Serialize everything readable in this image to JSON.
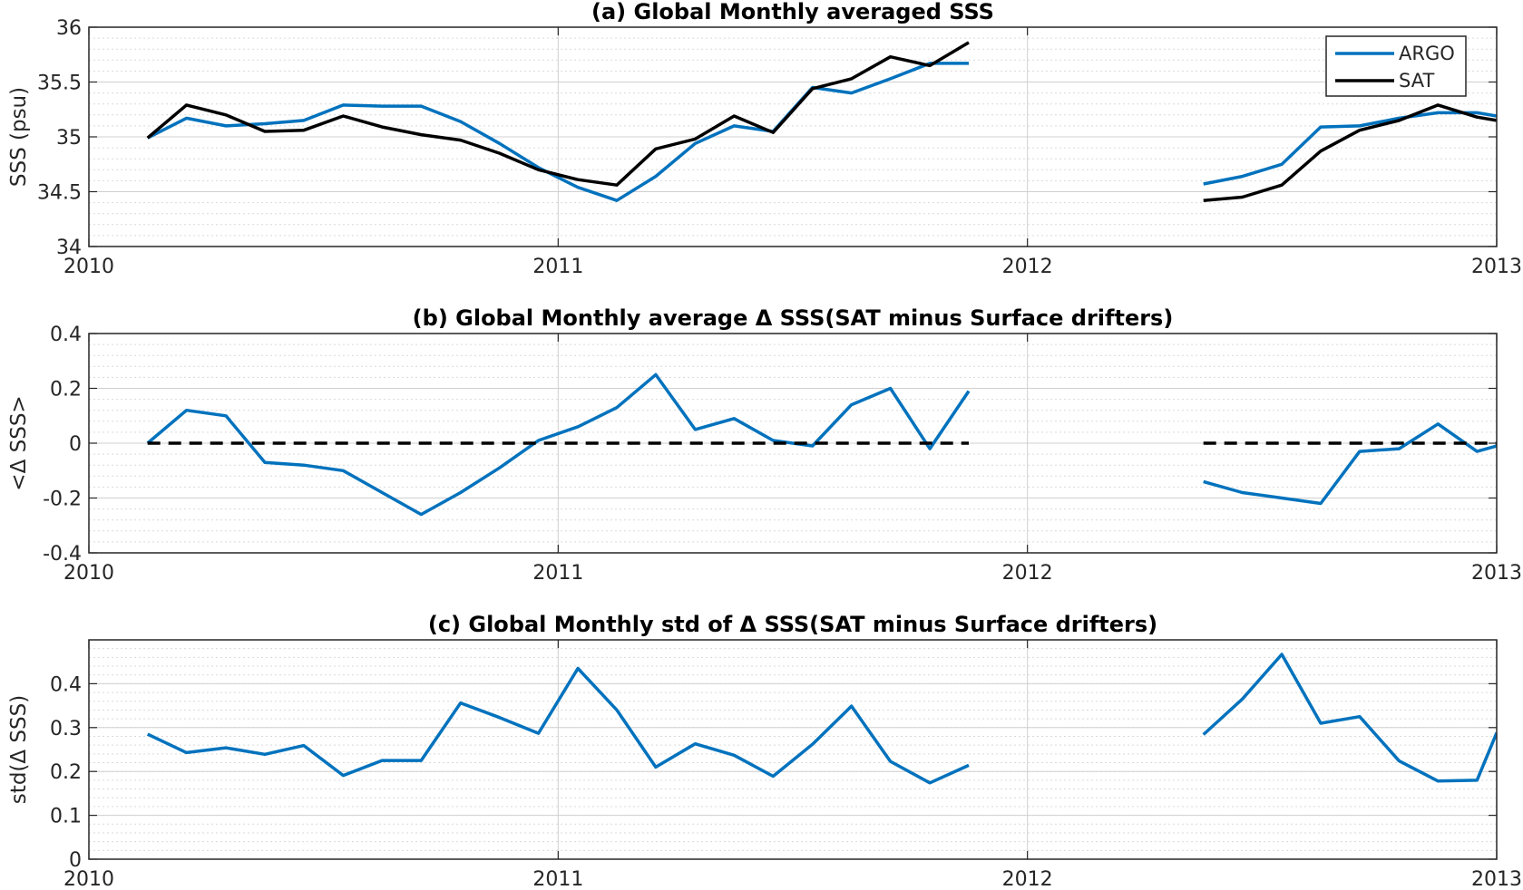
{
  "chart_data": [
    {
      "type": "line",
      "title": "(a) Global Monthly averaged SSS",
      "xlabel": "",
      "ylabel": "SSS (psu)",
      "xlim": [
        2010,
        2013
      ],
      "ylim": [
        34,
        36
      ],
      "x_ticks": [
        "2010",
        "2011",
        "2012",
        "2013"
      ],
      "y_ticks": [
        "34",
        "34.5",
        "35",
        "35.5",
        "36"
      ],
      "grid": true,
      "legend": "top-right",
      "series": [
        {
          "name": "ARGO",
          "color": "#0072BD",
          "segments": [
            [
              [
                2010.125,
                34.99
              ],
              [
                2010.208,
                35.17
              ],
              [
                2010.292,
                35.1
              ],
              [
                2010.375,
                35.12
              ],
              [
                2010.458,
                35.15
              ],
              [
                2010.542,
                35.29
              ],
              [
                2010.625,
                35.28
              ],
              [
                2010.708,
                35.28
              ],
              [
                2010.792,
                35.14
              ],
              [
                2010.875,
                34.94
              ],
              [
                2010.958,
                34.72
              ],
              [
                2011.042,
                34.54
              ],
              [
                2011.125,
                34.42
              ],
              [
                2011.208,
                34.64
              ],
              [
                2011.292,
                34.94
              ],
              [
                2011.375,
                35.1
              ],
              [
                2011.458,
                35.05
              ],
              [
                2011.542,
                35.45
              ],
              [
                2011.625,
                35.4
              ],
              [
                2011.708,
                35.53
              ],
              [
                2011.792,
                35.67
              ],
              [
                2011.875,
                35.67
              ]
            ],
            [
              [
                2012.375,
                34.57
              ],
              [
                2012.458,
                34.64
              ],
              [
                2012.542,
                34.75
              ],
              [
                2012.625,
                35.09
              ],
              [
                2012.708,
                35.1
              ],
              [
                2012.792,
                35.17
              ],
              [
                2012.875,
                35.22
              ],
              [
                2012.958,
                35.22
              ],
              [
                2013.0,
                35.19
              ]
            ]
          ]
        },
        {
          "name": "SAT",
          "color": "#000000",
          "segments": [
            [
              [
                2010.125,
                34.99
              ],
              [
                2010.208,
                35.29
              ],
              [
                2010.292,
                35.2
              ],
              [
                2010.375,
                35.05
              ],
              [
                2010.458,
                35.06
              ],
              [
                2010.542,
                35.19
              ],
              [
                2010.625,
                35.09
              ],
              [
                2010.708,
                35.02
              ],
              [
                2010.792,
                34.97
              ],
              [
                2010.875,
                34.85
              ],
              [
                2010.958,
                34.7
              ],
              [
                2011.042,
                34.61
              ],
              [
                2011.125,
                34.56
              ],
              [
                2011.208,
                34.89
              ],
              [
                2011.292,
                34.98
              ],
              [
                2011.375,
                35.19
              ],
              [
                2011.458,
                35.04
              ],
              [
                2011.542,
                35.44
              ],
              [
                2011.625,
                35.53
              ],
              [
                2011.708,
                35.73
              ],
              [
                2011.792,
                35.65
              ],
              [
                2011.875,
                35.86
              ]
            ],
            [
              [
                2012.375,
                34.42
              ],
              [
                2012.458,
                34.45
              ],
              [
                2012.542,
                34.56
              ],
              [
                2012.625,
                34.87
              ],
              [
                2012.708,
                35.06
              ],
              [
                2012.792,
                35.15
              ],
              [
                2012.875,
                35.29
              ],
              [
                2012.958,
                35.18
              ],
              [
                2013.0,
                35.15
              ]
            ]
          ]
        }
      ]
    },
    {
      "type": "line",
      "title": "(b) Global Monthly average Δ SSS(SAT minus Surface drifters)",
      "xlabel": "",
      "ylabel": "<Δ SSS>",
      "xlim": [
        2010,
        2013
      ],
      "ylim": [
        -0.4,
        0.4
      ],
      "x_ticks": [
        "2010",
        "2011",
        "2012",
        "2013"
      ],
      "y_ticks": [
        "-0.4",
        "-0.2",
        "0",
        "0.2",
        "0.4"
      ],
      "grid": true,
      "series": [
        {
          "color": "#0072BD",
          "segments": [
            [
              [
                2010.125,
                0.0
              ],
              [
                2010.208,
                0.12
              ],
              [
                2010.292,
                0.1
              ],
              [
                2010.375,
                -0.07
              ],
              [
                2010.458,
                -0.08
              ],
              [
                2010.542,
                -0.1
              ],
              [
                2010.625,
                -0.18
              ],
              [
                2010.708,
                -0.26
              ],
              [
                2010.792,
                -0.18
              ],
              [
                2010.875,
                -0.09
              ],
              [
                2010.958,
                0.01
              ],
              [
                2011.042,
                0.06
              ],
              [
                2011.125,
                0.13
              ],
              [
                2011.208,
                0.25
              ],
              [
                2011.292,
                0.05
              ],
              [
                2011.375,
                0.09
              ],
              [
                2011.458,
                0.01
              ],
              [
                2011.542,
                -0.01
              ],
              [
                2011.625,
                0.14
              ],
              [
                2011.708,
                0.2
              ],
              [
                2011.792,
                -0.02
              ],
              [
                2011.875,
                0.19
              ]
            ],
            [
              [
                2012.375,
                -0.14
              ],
              [
                2012.458,
                -0.18
              ],
              [
                2012.542,
                -0.2
              ],
              [
                2012.625,
                -0.22
              ],
              [
                2012.708,
                -0.03
              ],
              [
                2012.792,
                -0.02
              ],
              [
                2012.875,
                0.07
              ],
              [
                2012.958,
                -0.03
              ],
              [
                2013.0,
                -0.01
              ]
            ]
          ]
        },
        {
          "color": "#000000",
          "dashed": true,
          "segments": [
            [
              [
                2010.125,
                0
              ],
              [
                2011.875,
                0
              ]
            ],
            [
              [
                2012.375,
                0
              ],
              [
                2013.0,
                0
              ]
            ]
          ]
        }
      ]
    },
    {
      "type": "line",
      "title": "(c) Global Monthly std of Δ SSS(SAT minus Surface drifters)",
      "xlabel": "",
      "ylabel": "std(Δ SSS)",
      "xlim": [
        2010,
        2013
      ],
      "ylim": [
        0,
        0.5
      ],
      "x_ticks": [
        "2010",
        "2011",
        "2012",
        "2013"
      ],
      "y_ticks": [
        "0",
        "0.1",
        "0.2",
        "0.3",
        "0.4"
      ],
      "grid": true,
      "series": [
        {
          "color": "#0072BD",
          "segments": [
            [
              [
                2010.125,
                0.285
              ],
              [
                2010.208,
                0.243
              ],
              [
                2010.292,
                0.254
              ],
              [
                2010.375,
                0.239
              ],
              [
                2010.458,
                0.259
              ],
              [
                2010.542,
                0.191
              ],
              [
                2010.625,
                0.225
              ],
              [
                2010.708,
                0.225
              ],
              [
                2010.792,
                0.356
              ],
              [
                2010.875,
                0.323
              ],
              [
                2010.958,
                0.287
              ],
              [
                2011.042,
                0.435
              ],
              [
                2011.125,
                0.34
              ],
              [
                2011.208,
                0.21
              ],
              [
                2011.292,
                0.263
              ],
              [
                2011.375,
                0.237
              ],
              [
                2011.458,
                0.189
              ],
              [
                2011.542,
                0.262
              ],
              [
                2011.625,
                0.349
              ],
              [
                2011.708,
                0.223
              ],
              [
                2011.792,
                0.174
              ],
              [
                2011.875,
                0.214
              ]
            ],
            [
              [
                2012.375,
                0.284
              ],
              [
                2012.458,
                0.365
              ],
              [
                2012.542,
                0.467
              ],
              [
                2012.625,
                0.31
              ],
              [
                2012.708,
                0.325
              ],
              [
                2012.792,
                0.224
              ],
              [
                2012.875,
                0.178
              ],
              [
                2012.958,
                0.18
              ],
              [
                2013.0,
                0.288
              ]
            ]
          ]
        }
      ]
    }
  ]
}
